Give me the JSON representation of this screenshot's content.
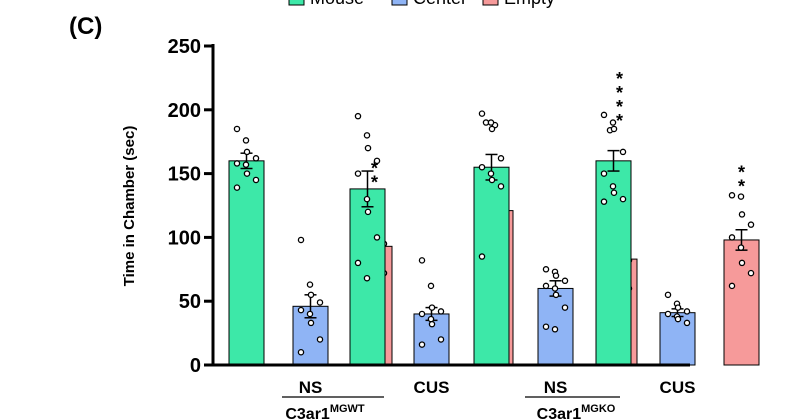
{
  "chart_data": {
    "type": "bar",
    "panel_label": "(C)",
    "ylabel": "Time in Chamber (sec)",
    "ylim": [
      0,
      250
    ],
    "yticks": [
      0,
      50,
      100,
      150,
      200,
      250
    ],
    "legend": {
      "placement": "top",
      "entries": [
        "Mouse",
        "Center",
        "Empty"
      ]
    },
    "colors": {
      "Mouse": "#3de8a8",
      "Center": "#8fb4f5",
      "Empty": "#f69a9a"
    },
    "genotypes": [
      {
        "main": "C3ar1",
        "sup": "MGWT"
      },
      {
        "main": "C3ar1",
        "sup": "MGKO"
      }
    ],
    "groups": [
      {
        "condition": "NS",
        "genotype_index": 0,
        "series": [
          {
            "name": "Mouse",
            "value": 160,
            "sem": 6,
            "points": [
              185,
              176,
              167,
              162,
              158,
              157,
              150,
              145,
              139
            ]
          },
          {
            "name": "Center",
            "value": 46,
            "sem": 9,
            "points": [
              98,
              63,
              55,
              49,
              43,
              40,
              33,
              20,
              10
            ]
          },
          {
            "name": "Empty",
            "value": 93,
            "sem": 7,
            "points": [
              125,
              120,
              98,
              95,
              92,
              88,
              82,
              72,
              57
            ]
          }
        ],
        "significance": {
          "series": "Empty",
          "label": "***"
        }
      },
      {
        "condition": "CUS",
        "genotype_index": 0,
        "series": [
          {
            "name": "Mouse",
            "value": 138,
            "sem": 14,
            "points": [
              195,
              180,
              170,
              160,
              150,
              130,
              120,
              100,
              80,
              68
            ]
          },
          {
            "name": "Center",
            "value": 40,
            "sem": 5,
            "points": [
              82,
              62,
              45,
              42,
              40,
              36,
              32,
              20,
              16
            ]
          },
          {
            "name": "Empty",
            "value": 121,
            "sem": 13,
            "points": [
              190,
              188,
              150,
              130,
              120,
              110,
              100,
              90,
              84
            ]
          }
        ],
        "significance": null
      },
      {
        "condition": "NS",
        "genotype_index": 1,
        "series": [
          {
            "name": "Mouse",
            "value": 155,
            "sem": 10,
            "points": [
              197,
              190,
              185,
              162,
              155,
              150,
              145,
              140,
              85
            ]
          },
          {
            "name": "Center",
            "value": 60,
            "sem": 6,
            "points": [
              75,
              73,
              70,
              66,
              62,
              60,
              55,
              45,
              30,
              28
            ]
          },
          {
            "name": "Empty",
            "value": 83,
            "sem": 13,
            "points": [
              184,
              85,
              84,
              82,
              80,
              76,
              70,
              60,
              40,
              28
            ]
          }
        ],
        "significance": {
          "series": "Empty",
          "label": "****"
        }
      },
      {
        "condition": "CUS",
        "genotype_index": 1,
        "series": [
          {
            "name": "Mouse",
            "value": 160,
            "sem": 8,
            "points": [
              196,
              190,
              185,
              167,
              150,
              140,
              135,
              130,
              128
            ]
          },
          {
            "name": "Center",
            "value": 41,
            "sem": 3,
            "points": [
              55,
              48,
              45,
              42,
              40,
              38,
              36,
              33
            ]
          },
          {
            "name": "Empty",
            "value": 98,
            "sem": 8,
            "points": [
              133,
              132,
              118,
              110,
              100,
              92,
              80,
              72,
              62
            ]
          }
        ],
        "significance": {
          "series": "Empty",
          "label": "**"
        }
      }
    ]
  }
}
